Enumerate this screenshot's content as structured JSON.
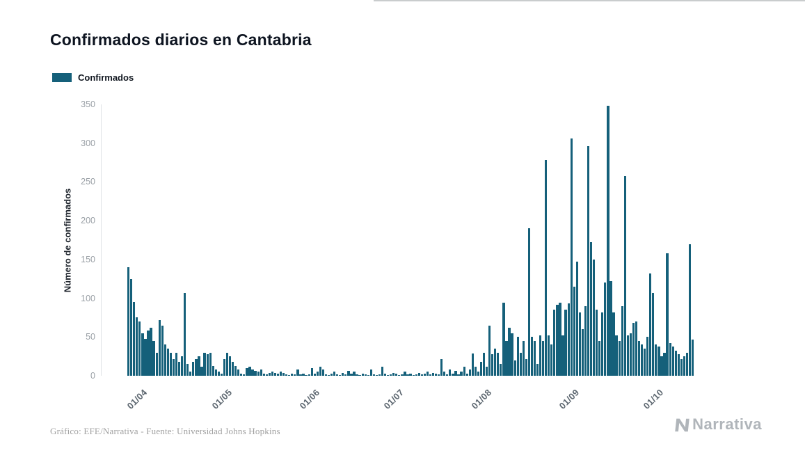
{
  "header": {
    "title": "Confirmados diarios en Cantabria"
  },
  "legend": {
    "label": "Confirmados"
  },
  "footer": {
    "source": "Gráfico: EFE/Narrativa - Fuente: Universidad Johns Hopkins",
    "brand": "Narrativa"
  },
  "colors": {
    "bar": "#15607a",
    "title": "#0d1420",
    "x_tick": "#5d6770",
    "y_tick": "#9aa0a6",
    "axis_line": "#e1e4e6",
    "caption": "#a0a0a0",
    "brand_gray": "#b0b5ba"
  },
  "chart_data": {
    "type": "bar",
    "title": "Confirmados diarios en Cantabria",
    "series_name": "Confirmados",
    "xlabel": "",
    "ylabel": "Número de confirmados",
    "ylim": [
      0,
      350
    ],
    "yticks": [
      0,
      50,
      100,
      150,
      200,
      250,
      300,
      350
    ],
    "grid": "none",
    "legend_position": "top-left",
    "xticks": [
      {
        "label": "01/04",
        "index": 4
      },
      {
        "label": "01/05",
        "index": 34
      },
      {
        "label": "01/06",
        "index": 65
      },
      {
        "label": "01/07",
        "index": 95
      },
      {
        "label": "01/08",
        "index": 126
      },
      {
        "label": "01/09",
        "index": 157
      },
      {
        "label": "01/10",
        "index": 187
      }
    ],
    "values": [
      140,
      125,
      95,
      75,
      70,
      55,
      48,
      58,
      62,
      45,
      30,
      72,
      65,
      40,
      35,
      30,
      22,
      30,
      18,
      25,
      107,
      15,
      5,
      18,
      22,
      25,
      12,
      30,
      28,
      30,
      13,
      8,
      5,
      3,
      22,
      30,
      25,
      18,
      13,
      8,
      3,
      2,
      10,
      12,
      8,
      6,
      5,
      8,
      3,
      2,
      4,
      5,
      4,
      3,
      5,
      4,
      2,
      1,
      3,
      2,
      8,
      2,
      3,
      1,
      2,
      10,
      3,
      5,
      12,
      8,
      2,
      1,
      3,
      5,
      2,
      1,
      4,
      2,
      6,
      3,
      5,
      2,
      1,
      3,
      2,
      1,
      8,
      2,
      1,
      2,
      12,
      3,
      1,
      2,
      4,
      3,
      1,
      2,
      5,
      2,
      3,
      1,
      2,
      4,
      2,
      3,
      5,
      2,
      4,
      3,
      2,
      22,
      5,
      2,
      8,
      3,
      6,
      2,
      5,
      12,
      3,
      8,
      29,
      12,
      5,
      18,
      30,
      12,
      65,
      28,
      35,
      30,
      15,
      94,
      45,
      62,
      55,
      20,
      50,
      30,
      45,
      22,
      190,
      50,
      45,
      15,
      52,
      45,
      278,
      52,
      40,
      85,
      92,
      94,
      52,
      85,
      93,
      306,
      115,
      147,
      82,
      60,
      90,
      296,
      172,
      150,
      85,
      45,
      82,
      120,
      348,
      122,
      82,
      52,
      45,
      90,
      258,
      52,
      55,
      68,
      70,
      45,
      40,
      35,
      50,
      132,
      107,
      40,
      38,
      25,
      30,
      158,
      42,
      38,
      32,
      28,
      22,
      25,
      30,
      170,
      47
    ]
  }
}
